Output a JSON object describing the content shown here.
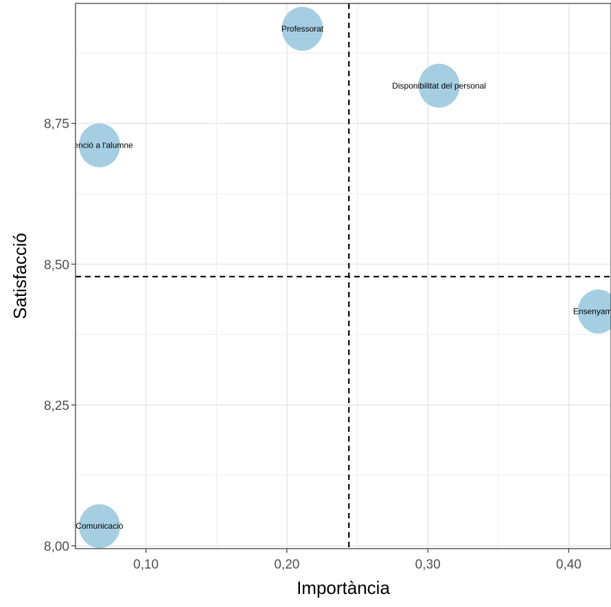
{
  "chart_data": {
    "type": "scatter",
    "title": "",
    "xlabel": "Importància",
    "ylabel": "Satisfacció",
    "xlim": [
      0.05,
      0.43
    ],
    "ylim": [
      7.995,
      8.963
    ],
    "x_ticks": [
      {
        "value": 0.1,
        "label": "0,10"
      },
      {
        "value": 0.2,
        "label": "0,20"
      },
      {
        "value": 0.3,
        "label": "0,30"
      },
      {
        "value": 0.4,
        "label": "0,40"
      }
    ],
    "y_ticks": [
      {
        "value": 8.0,
        "label": "8,00"
      },
      {
        "value": 8.25,
        "label": "8,25"
      },
      {
        "value": 8.5,
        "label": "8,50"
      },
      {
        "value": 8.75,
        "label": "8,75"
      }
    ],
    "x_minor": [
      0.05,
      0.15,
      0.25,
      0.35
    ],
    "y_minor": [
      8.125,
      8.375,
      8.625,
      8.875
    ],
    "grid": true,
    "reference_lines": {
      "x": 0.244,
      "y": 8.478
    },
    "point_color": "#a6cee3",
    "points": [
      {
        "label": "Professorat",
        "x": 0.211,
        "y": 8.918
      },
      {
        "label": "Disponibilitat del personal",
        "x": 0.308,
        "y": 8.817
      },
      {
        "label": "Atenció a l'alumne",
        "x": 0.067,
        "y": 8.711
      },
      {
        "label": "Ensenyament",
        "x": 0.421,
        "y": 8.416
      },
      {
        "label": "Comunicació",
        "x": 0.067,
        "y": 8.035
      }
    ]
  }
}
